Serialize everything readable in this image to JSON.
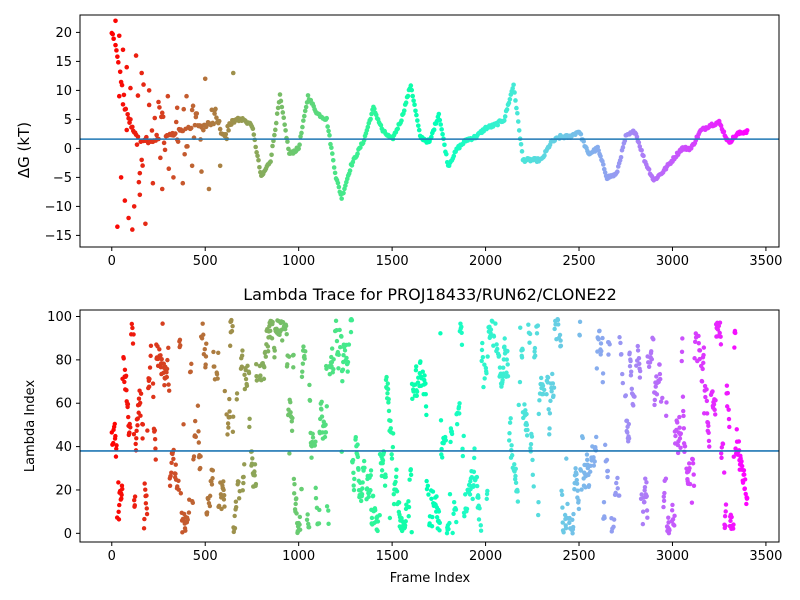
{
  "chart_data": [
    {
      "type": "scatter",
      "title": "",
      "xlabel": "",
      "ylabel": "ΔG (kT)",
      "xlim": [
        -170,
        3570
      ],
      "ylim": [
        -17,
        23
      ],
      "xticks": [
        "0",
        "500",
        "1000",
        "1500",
        "2000",
        "2500",
        "3000",
        "3500"
      ],
      "yticks": [
        "−15",
        "−10",
        "−5",
        "0",
        "5",
        "10",
        "15",
        "20"
      ],
      "hline": 1.6,
      "hline_color": "#1f77b4",
      "colormap": "rainbow",
      "trace": [
        [
          0,
          20
        ],
        [
          25,
          17
        ],
        [
          50,
          12
        ],
        [
          75,
          7
        ],
        [
          100,
          4
        ],
        [
          150,
          1.5
        ],
        [
          200,
          1
        ],
        [
          300,
          2
        ],
        [
          400,
          3.5
        ],
        [
          500,
          4
        ],
        [
          560,
          5
        ],
        [
          600,
          1.5
        ],
        [
          650,
          5
        ],
        [
          700,
          5
        ],
        [
          750,
          4
        ],
        [
          800,
          -5
        ],
        [
          850,
          -2
        ],
        [
          900,
          9
        ],
        [
          950,
          -1
        ],
        [
          1000,
          0
        ],
        [
          1050,
          9
        ],
        [
          1100,
          6
        ],
        [
          1150,
          5
        ],
        [
          1200,
          -5
        ],
        [
          1230,
          -8.5
        ],
        [
          1280,
          -3
        ],
        [
          1350,
          1.5
        ],
        [
          1400,
          7
        ],
        [
          1450,
          3
        ],
        [
          1500,
          1.5
        ],
        [
          1550,
          5
        ],
        [
          1600,
          11
        ],
        [
          1650,
          2
        ],
        [
          1700,
          1
        ],
        [
          1750,
          6
        ],
        [
          1800,
          -3
        ],
        [
          1850,
          0
        ],
        [
          1900,
          1.5
        ],
        [
          1950,
          2
        ],
        [
          2000,
          3.5
        ],
        [
          2050,
          4
        ],
        [
          2100,
          5
        ],
        [
          2150,
          11
        ],
        [
          2200,
          -2
        ],
        [
          2300,
          -2
        ],
        [
          2350,
          1
        ],
        [
          2400,
          2
        ],
        [
          2450,
          2
        ],
        [
          2500,
          3
        ],
        [
          2550,
          -1
        ],
        [
          2600,
          0
        ],
        [
          2650,
          -5
        ],
        [
          2700,
          -4.5
        ],
        [
          2750,
          2
        ],
        [
          2800,
          3
        ],
        [
          2850,
          -2
        ],
        [
          2900,
          -5.5
        ],
        [
          2950,
          -4
        ],
        [
          3000,
          -2
        ],
        [
          3050,
          0
        ],
        [
          3100,
          0
        ],
        [
          3150,
          3
        ],
        [
          3200,
          4
        ],
        [
          3250,
          4.5
        ],
        [
          3300,
          1
        ],
        [
          3350,
          2.5
        ],
        [
          3400,
          3
        ]
      ],
      "noise_points": [
        [
          20,
          22
        ],
        [
          30,
          -13.5
        ],
        [
          40,
          9
        ],
        [
          50,
          -5
        ],
        [
          60,
          17
        ],
        [
          70,
          -9
        ],
        [
          80,
          14
        ],
        [
          90,
          -12
        ],
        [
          100,
          5
        ],
        [
          110,
          -14
        ],
        [
          120,
          -10
        ],
        [
          130,
          16
        ],
        [
          140,
          2
        ],
        [
          150,
          -8
        ],
        [
          160,
          13
        ],
        [
          170,
          11
        ],
        [
          180,
          -13
        ],
        [
          200,
          10
        ],
        [
          220,
          -6
        ],
        [
          250,
          8
        ],
        [
          270,
          -7
        ],
        [
          300,
          9
        ],
        [
          330,
          -5
        ],
        [
          350,
          7
        ],
        [
          380,
          -6
        ],
        [
          400,
          9
        ],
        [
          430,
          -3
        ],
        [
          450,
          6
        ],
        [
          480,
          -4
        ],
        [
          500,
          12
        ],
        [
          520,
          -7
        ],
        [
          550,
          6
        ],
        [
          580,
          -3
        ],
        [
          650,
          13
        ]
      ]
    },
    {
      "type": "scatter",
      "title": "Lambda Trace for PROJ18433/RUN62/CLONE22",
      "xlabel": "Frame Index",
      "ylabel": "Lambda Index",
      "xlim": [
        -170,
        3570
      ],
      "ylim": [
        -4,
        103
      ],
      "xticks": [
        "0",
        "500",
        "1000",
        "1500",
        "2000",
        "2500",
        "3000",
        "3500"
      ],
      "yticks": [
        "0",
        "20",
        "40",
        "60",
        "80",
        "100"
      ],
      "hline": 38,
      "hline_color": "#1f77b4",
      "colormap": "rainbow",
      "frame_range": [
        0,
        3400
      ],
      "lambda_range": [
        0,
        99
      ]
    }
  ]
}
